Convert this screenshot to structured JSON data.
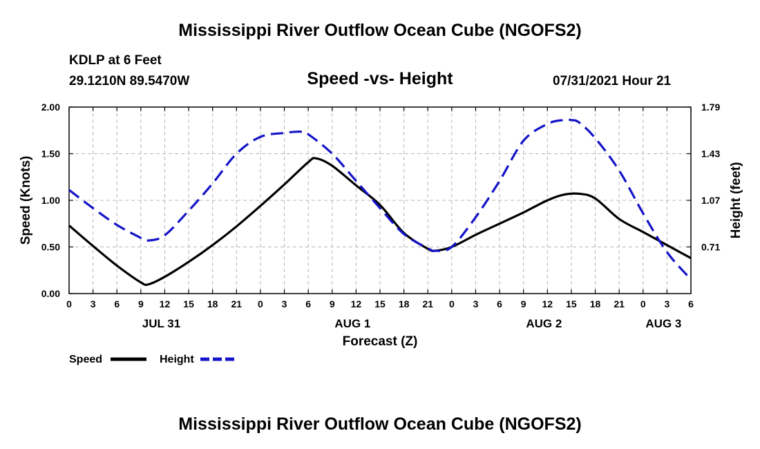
{
  "header": {
    "title": "Mississippi River Outflow Ocean Cube (NGOFS2)",
    "station": "KDLP at 6 Feet",
    "location": "29.1210N  89.5470W",
    "subtitle": "Speed -vs- Height",
    "datetime": "07/31/2021 Hour 21"
  },
  "footer": {
    "title": "Mississippi River Outflow Ocean Cube (NGOFS2)"
  },
  "chart_data": {
    "type": "line",
    "title": "Speed -vs- Height",
    "xlabel": "Forecast (Z)",
    "ylabel": "Speed (Knots)",
    "ylabel_right": "Height (feet)",
    "x_range_hours": [
      0,
      78
    ],
    "ylim": [
      0,
      2
    ],
    "ylim_right": [
      0.35,
      1.79
    ],
    "x_tick_labels": [
      "0",
      "3",
      "6",
      "9",
      "12",
      "15",
      "18",
      "21",
      "0",
      "3",
      "6",
      "9",
      "12",
      "15",
      "18",
      "21",
      "0",
      "3",
      "6",
      "9",
      "12",
      "15",
      "18",
      "21",
      "0",
      "3",
      "6"
    ],
    "x_tick_hours": [
      0,
      3,
      6,
      9,
      12,
      15,
      18,
      21,
      24,
      27,
      30,
      33,
      36,
      39,
      42,
      45,
      48,
      51,
      54,
      57,
      60,
      63,
      66,
      69,
      72,
      75,
      78
    ],
    "y_ticks": [
      "0.00",
      "0.50",
      "1.00",
      "1.50",
      "2.00"
    ],
    "y_tick_values": [
      0,
      0.5,
      1.0,
      1.5,
      2.0
    ],
    "y_right_ticks": [
      "0.71",
      "1.07",
      "1.43",
      "1.79"
    ],
    "y_right_tick_values": [
      0.71,
      1.07,
      1.43,
      1.79
    ],
    "date_labels": [
      {
        "label": "JUL 31",
        "hour": 12
      },
      {
        "label": "AUG 1",
        "hour": 36
      },
      {
        "label": "AUG 2",
        "hour": 60
      },
      {
        "label": "AUG 3",
        "hour": 75
      }
    ],
    "grid": true,
    "series": [
      {
        "name": "Speed",
        "axis": "left",
        "color": "#000000",
        "style": "solid",
        "x": [
          0,
          3,
          6,
          9,
          10,
          12,
          15,
          18,
          21,
          24,
          27,
          30,
          31,
          33,
          36,
          39,
          42,
          45,
          46,
          48,
          51,
          54,
          57,
          60,
          62,
          64,
          66,
          69,
          72,
          75,
          78
        ],
        "values": [
          0.73,
          0.51,
          0.3,
          0.12,
          0.1,
          0.18,
          0.34,
          0.52,
          0.72,
          0.94,
          1.17,
          1.41,
          1.45,
          1.37,
          1.16,
          0.95,
          0.65,
          0.48,
          0.46,
          0.5,
          0.63,
          0.75,
          0.87,
          1.0,
          1.06,
          1.07,
          1.02,
          0.8,
          0.66,
          0.52,
          0.38
        ]
      },
      {
        "name": "Height",
        "axis": "right",
        "color": "#1414c8",
        "style": "dashed",
        "x": [
          0,
          3,
          6,
          9,
          10,
          12,
          15,
          18,
          21,
          24,
          27,
          29,
          30,
          33,
          36,
          39,
          42,
          45,
          46,
          48,
          51,
          54,
          57,
          60,
          62,
          63,
          64,
          66,
          69,
          72,
          75,
          78
        ],
        "values": [
          1.15,
          1.01,
          0.88,
          0.78,
          0.76,
          0.8,
          0.99,
          1.2,
          1.43,
          1.56,
          1.59,
          1.6,
          1.58,
          1.43,
          1.22,
          1.01,
          0.81,
          0.7,
          0.68,
          0.71,
          0.94,
          1.22,
          1.53,
          1.66,
          1.69,
          1.69,
          1.67,
          1.55,
          1.3,
          0.97,
          0.67,
          0.46
        ]
      }
    ],
    "legend": [
      {
        "label": "Speed",
        "color": "#000000",
        "style": "solid"
      },
      {
        "label": "Height",
        "color": "#1414c8",
        "style": "dashed"
      }
    ]
  }
}
